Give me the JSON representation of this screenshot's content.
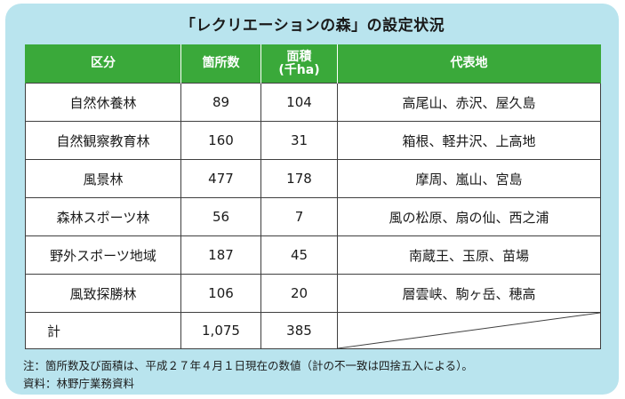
{
  "title": "「レクリエーションの森」の設定状況",
  "headers": {
    "category": "区分",
    "count": "箇所数",
    "area_line1": "面積",
    "area_line2": "(千ha)",
    "representative": "代表地"
  },
  "rows": [
    {
      "category": "自然休養林",
      "count": "89",
      "area": "104",
      "representative": "高尾山、赤沢、屋久島"
    },
    {
      "category": "自然観察教育林",
      "count": "160",
      "area": "31",
      "representative": "箱根、軽井沢、上高地"
    },
    {
      "category": "風景林",
      "count": "477",
      "area": "178",
      "representative": "摩周、嵐山、宮島"
    },
    {
      "category": "森林スポーツ林",
      "count": "56",
      "area": "7",
      "representative": "風の松原、扇の仙、西之浦"
    },
    {
      "category": "野外スポーツ地域",
      "count": "187",
      "area": "45",
      "representative": "南蔵王、玉原、苗場"
    },
    {
      "category": "風致探勝林",
      "count": "106",
      "area": "20",
      "representative": "層雲峡、駒ヶ岳、穂高"
    }
  ],
  "total": {
    "label": "計",
    "count": "1,075",
    "area": "385"
  },
  "notes": {
    "note1": "注：箇所数及び面積は、平成２７年４月１日現在の数値（計の不一致は四捨五入による）。",
    "note2": "資料：林野庁業務資料"
  }
}
